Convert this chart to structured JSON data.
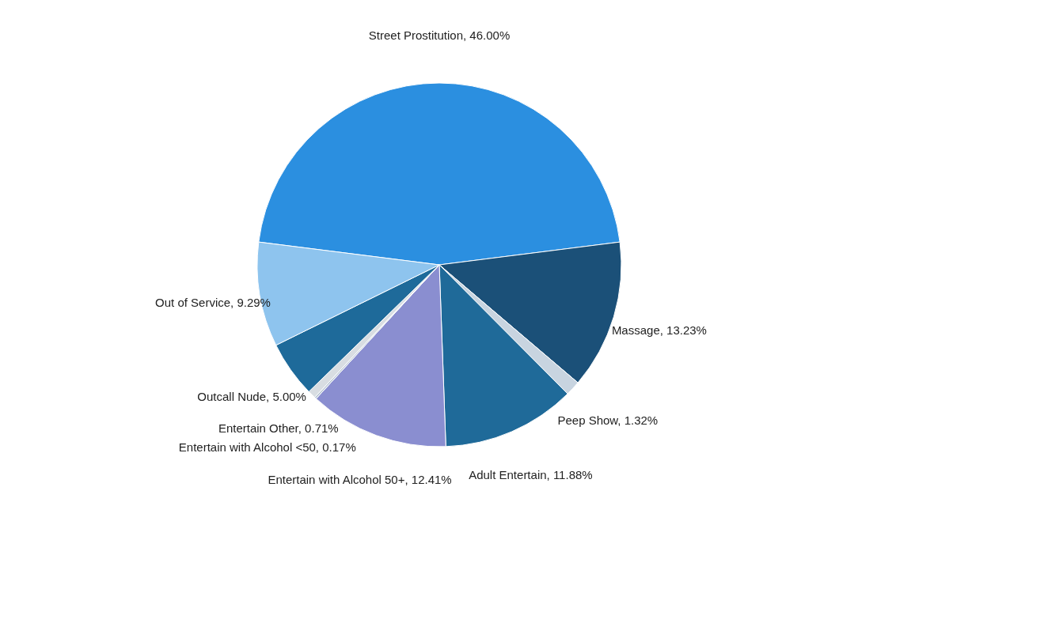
{
  "chart_data": {
    "type": "pie",
    "categories": [
      "Street Prostitution",
      "Massage",
      "Peep Show",
      "Adult Entertain",
      "Entertain with Alcohol 50+",
      "Entertain with Alcohol <50",
      "Entertain Other",
      "Outcall Nude",
      "Out of Service"
    ],
    "values": [
      46.0,
      13.23,
      1.32,
      11.88,
      12.41,
      0.17,
      0.71,
      5.0,
      9.29
    ],
    "value_labels": [
      "46.00%",
      "13.23%",
      "1.32%",
      "11.88%",
      "12.41%",
      "0.17%",
      "0.71%",
      "5.00%",
      "9.29%"
    ],
    "colors": [
      "#2b8fe0",
      "#1b5078",
      "#c8d4e0",
      "#1f6a99",
      "#8a8ed0",
      "#b8c6d4",
      "#d8dde2",
      "#1e6a9a",
      "#8ec4ee"
    ],
    "legend": false
  }
}
